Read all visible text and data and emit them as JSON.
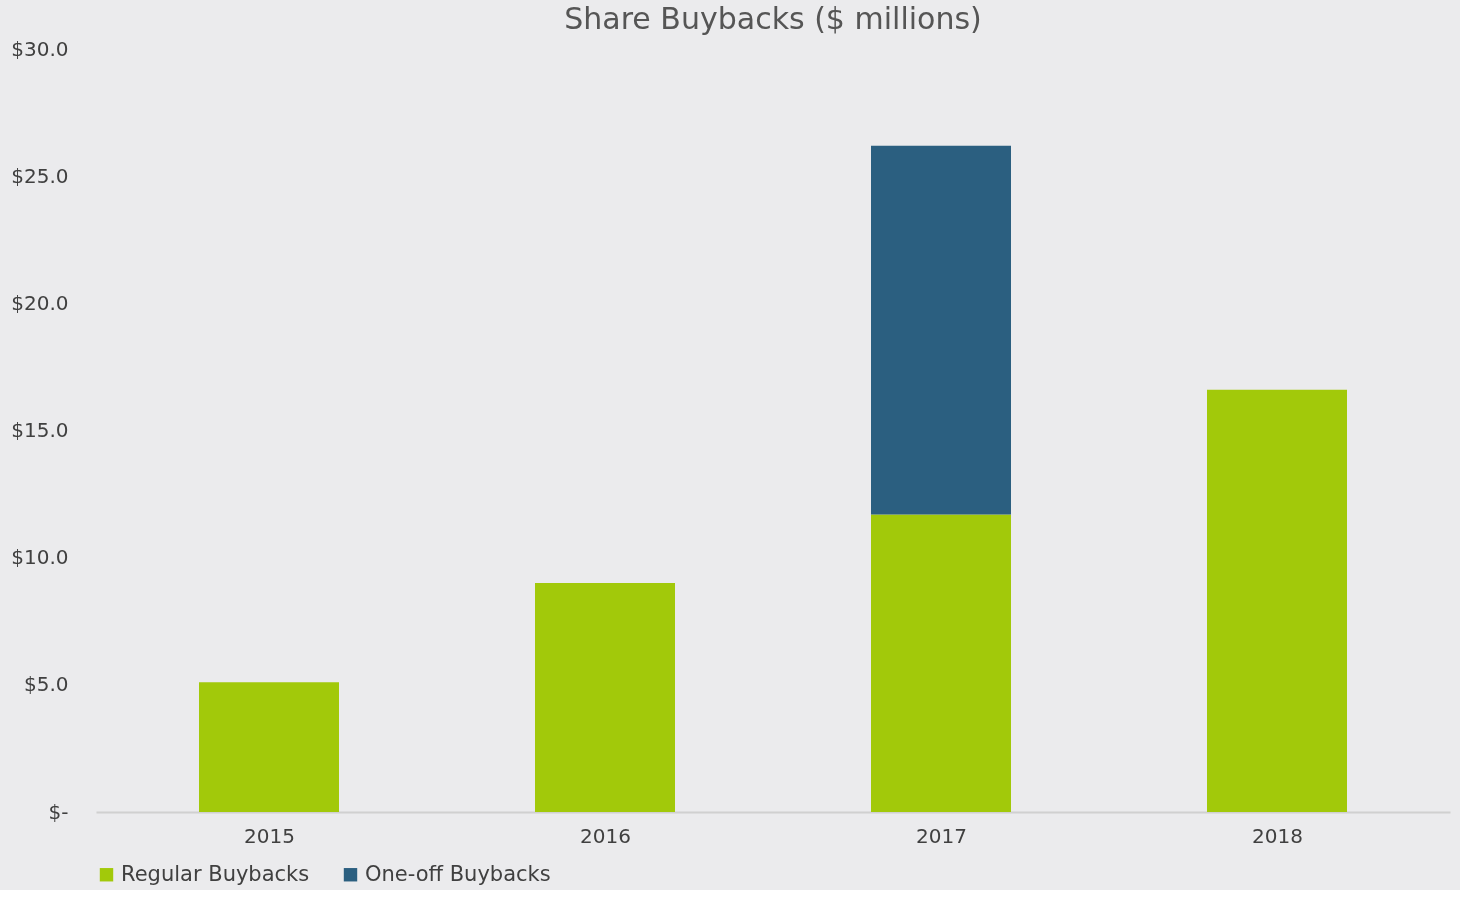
{
  "chart_data": {
    "type": "bar",
    "title": "Share Buybacks ($ millions)",
    "stacked": true,
    "categories": [
      "2015",
      "2016",
      "2017",
      "2018"
    ],
    "series": [
      {
        "name": "Regular Buybacks",
        "color": "#a2c90a",
        "values": [
          5.1,
          9.0,
          11.7,
          16.6
        ]
      },
      {
        "name": "One-off Buybacks",
        "color": "#2b5f80",
        "values": [
          null,
          null,
          14.5,
          null
        ]
      }
    ],
    "ylim": [
      0,
      30
    ],
    "yticks": [
      {
        "value": 0,
        "label": "$-"
      },
      {
        "value": 5,
        "label": "$5.0"
      },
      {
        "value": 10,
        "label": "$10.0"
      },
      {
        "value": 15,
        "label": "$15.0"
      },
      {
        "value": 20,
        "label": "$20.0"
      },
      {
        "value": 25,
        "label": "$25.0"
      },
      {
        "value": 30,
        "label": "$30.0"
      }
    ],
    "grid": false,
    "legend": "bottom"
  }
}
